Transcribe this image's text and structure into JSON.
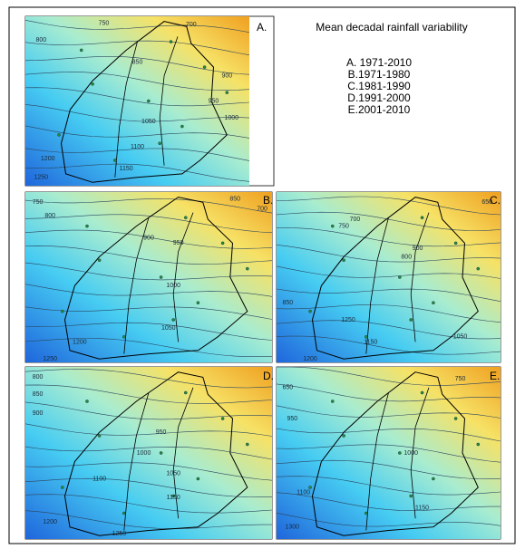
{
  "title": "Mean decadal rainfall variability",
  "legend": [
    "A. 1971-2010",
    "B.1971-1980",
    "C.1981-1990",
    "D.1991-2000",
    "E.2001-2010"
  ],
  "panels": [
    {
      "label": "A.",
      "contours": [
        750,
        700,
        800,
        850,
        900,
        950,
        1000,
        1050,
        1100,
        1150,
        1200,
        1250
      ]
    },
    {
      "label": "B.",
      "contours": [
        750,
        850,
        700,
        800,
        900,
        950,
        1000,
        1050,
        1200,
        1250
      ]
    },
    {
      "label": "C.",
      "contours": [
        650,
        700,
        750,
        800,
        850,
        900,
        1150,
        1050,
        1250,
        1200
      ]
    },
    {
      "label": "D.",
      "contours": [
        800,
        850,
        900,
        950,
        1000,
        1050,
        1100,
        1150,
        1200,
        1250
      ]
    },
    {
      "label": "E.",
      "contours": [
        650,
        750,
        950,
        1000,
        1100,
        1150,
        1300
      ]
    }
  ]
}
